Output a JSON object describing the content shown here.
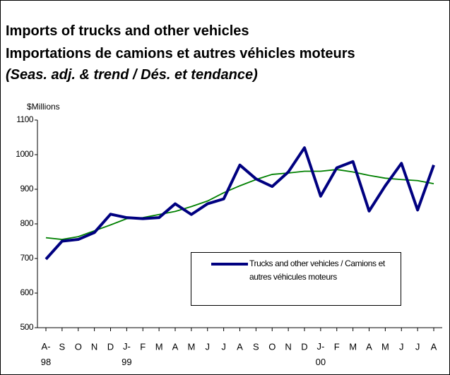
{
  "chart_data": {
    "type": "line",
    "title": "Imports of trucks and other vehicles",
    "subtitle": "Importations de camions et autres véhicles moteurs",
    "note": "(Seas. adj. & trend / Dés. et tendance)",
    "y_label": "$Millions",
    "categories": [
      "A-98",
      "S",
      "O",
      "N",
      "D",
      "J-99",
      "F",
      "M",
      "A",
      "M",
      "J",
      "J",
      "A",
      "S",
      "O",
      "N",
      "D",
      "J-00",
      "F",
      "M",
      "A",
      "M",
      "J",
      "J",
      "A"
    ],
    "series": [
      {
        "name": "Trucks and other vehicles / Camions et autres véhicules moteurs",
        "color": "#000080",
        "values": [
          698,
          750,
          755,
          775,
          828,
          818,
          815,
          818,
          858,
          827,
          858,
          872,
          970,
          930,
          908,
          950,
          1020,
          880,
          962,
          980,
          837,
          910,
          975,
          840,
          970
        ]
      },
      {
        "color": "#008000",
        "values": [
          760,
          755,
          763,
          780,
          797,
          815,
          818,
          827,
          836,
          850,
          866,
          890,
          910,
          928,
          943,
          947,
          952,
          952,
          957,
          950,
          940,
          932,
          928,
          925,
          916
        ]
      }
    ],
    "ylim": [
      500,
      1100
    ],
    "yticks": [
      500,
      600,
      700,
      800,
      900,
      1000,
      1100
    ]
  }
}
